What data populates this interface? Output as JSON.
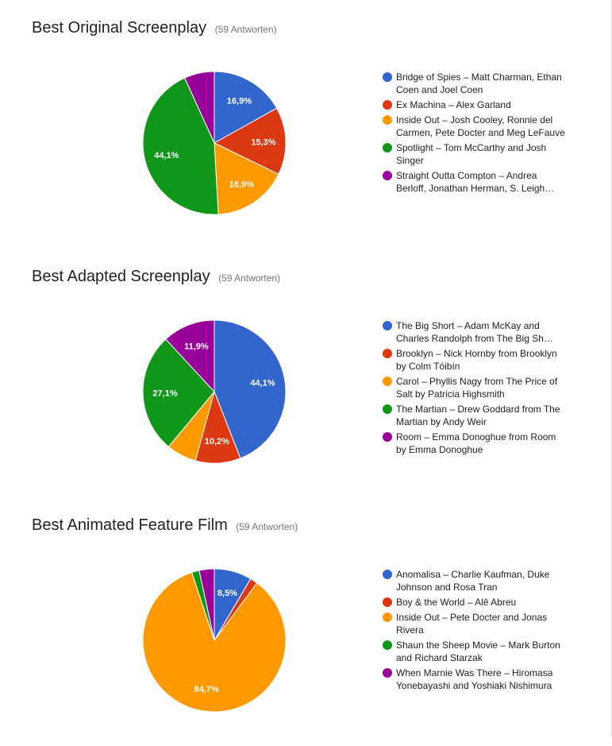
{
  "colors": {
    "blue": "#3366cc",
    "red": "#dc3912",
    "orange": "#ff9900",
    "green": "#109618",
    "purple": "#990099"
  },
  "chart_data": [
    {
      "type": "pie",
      "title": "Best Original Screenplay",
      "subtitle": "(59 Antworten)",
      "start_angle_deg": 90,
      "slices": [
        {
          "label": "Bridge of Spies – Matt Charman, Ethan Coen and Joel Coen",
          "value": 16.9,
          "display": "16,9%",
          "color": "#3366cc"
        },
        {
          "label": "Ex Machina – Alex Garland",
          "value": 15.3,
          "display": "15,3%",
          "color": "#dc3912"
        },
        {
          "label": "Inside Out – Josh Cooley, Ronnie del Carmen, Pete Docter and Meg LeFauve",
          "value": 16.9,
          "display": "16,9%",
          "color": "#ff9900"
        },
        {
          "label": "Spotlight – Tom McCarthy and Josh Singer",
          "value": 44.1,
          "display": "44,1%",
          "color": "#109618"
        },
        {
          "label": "Straight Outta Compton – Andrea Berloff, Jonathan Herman, S. Leigh…",
          "value": 6.8,
          "display": "",
          "color": "#990099"
        }
      ],
      "legend_position": "right"
    },
    {
      "type": "pie",
      "title": "Best Adapted Screenplay",
      "subtitle": "(59 Antworten)",
      "start_angle_deg": 90,
      "slices": [
        {
          "label": "The Big Short – Adam McKay and Charles Randolph from The Big Sh…",
          "value": 44.1,
          "display": "44,1%",
          "color": "#3366cc"
        },
        {
          "label": "Brooklyn – Nick Hornby from Brooklyn by Colm Tóibín",
          "value": 10.2,
          "display": "10,2%",
          "color": "#dc3912"
        },
        {
          "label": "Carol – Phyllis Nagy from The Price of Salt by Patricia Highsmith",
          "value": 6.8,
          "display": "",
          "color": "#ff9900"
        },
        {
          "label": "The Martian – Drew Goddard from The Martian by Andy Weir",
          "value": 27.1,
          "display": "27,1%",
          "color": "#109618"
        },
        {
          "label": "Room – Emma Donoghue from Room by Emma Donoghue",
          "value": 11.9,
          "display": "11,9%",
          "color": "#990099"
        }
      ],
      "legend_position": "right"
    },
    {
      "type": "pie",
      "title": "Best Animated Feature Film",
      "subtitle": "(59 Antworten)",
      "start_angle_deg": 90,
      "slices": [
        {
          "label": "Anomalisa – Charlie Kaufman, Duke Johnson and Rosa Tran",
          "value": 8.5,
          "display": "8,5%",
          "color": "#3366cc"
        },
        {
          "label": "Boy & the World – Alê Abreu",
          "value": 1.7,
          "display": "",
          "color": "#dc3912"
        },
        {
          "label": "Inside Out – Pete Docter and Jonas Rivera",
          "value": 84.7,
          "display": "84,7%",
          "color": "#ff9900"
        },
        {
          "label": "Shaun the Sheep Movie – Mark Burton and Richard Starzak",
          "value": 1.7,
          "display": "",
          "color": "#109618"
        },
        {
          "label": "When Marnie Was There – Hiromasa Yonebayashi and Yoshiaki Nishimura",
          "value": 3.4,
          "display": "",
          "color": "#990099"
        }
      ],
      "legend_position": "right"
    }
  ]
}
